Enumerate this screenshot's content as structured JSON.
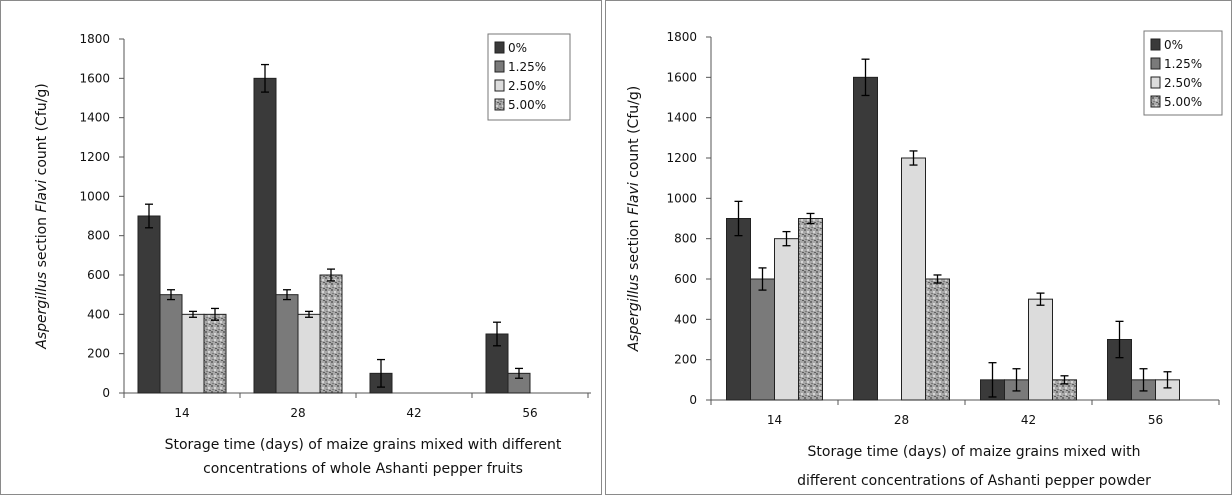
{
  "colors": {
    "s0": "#3a3a3a",
    "s1": "#7a7a7a",
    "s2": "#dcdcdc",
    "s3": "#9a9a9a",
    "axis": "#555555"
  },
  "chart_data": [
    {
      "type": "bar",
      "categories": [
        "14",
        "28",
        "42",
        "56"
      ],
      "ylim": [
        0,
        1800
      ],
      "yticks": [
        0,
        200,
        400,
        600,
        800,
        1000,
        1200,
        1400,
        1600,
        1800
      ],
      "ylabel_italic": "Aspergillus",
      "ylabel_mid": " section ",
      "ylabel_italic2": "Flavi",
      "ylabel_rest": " count (Cfu/g)",
      "xlabel_line1": "Storage time (days) of maize grains mixed with different",
      "xlabel_line2": "concentrations of whole Ashanti pepper fruits",
      "legend": [
        "0%",
        "1.25%",
        "2.50%",
        "5.00%"
      ],
      "legend_position": "top-right",
      "series": [
        {
          "name": "0%",
          "values": [
            900,
            1600,
            100,
            300
          ],
          "errors": [
            60,
            70,
            70,
            60
          ]
        },
        {
          "name": "1.25%",
          "values": [
            500,
            500,
            0,
            100
          ],
          "errors": [
            25,
            25,
            0,
            25
          ]
        },
        {
          "name": "2.50%",
          "values": [
            400,
            400,
            0,
            0
          ],
          "errors": [
            15,
            15,
            0,
            0
          ]
        },
        {
          "name": "5.00%",
          "values": [
            400,
            600,
            0,
            0
          ],
          "errors": [
            30,
            30,
            0,
            0
          ]
        }
      ]
    },
    {
      "type": "bar",
      "categories": [
        "14",
        "28",
        "42",
        "56"
      ],
      "ylim": [
        0,
        1800
      ],
      "yticks": [
        0,
        200,
        400,
        600,
        800,
        1000,
        1200,
        1400,
        1600,
        1800
      ],
      "ylabel_italic": "Aspergillus",
      "ylabel_mid": " section ",
      "ylabel_italic2": "Flavi",
      "ylabel_rest": " count (Cfu/g)",
      "xlabel_line1": "Storage time (days) of maize grains mixed with",
      "xlabel_line2": "different concentrations of Ashanti pepper powder",
      "legend": [
        "0%",
        "1.25%",
        "2.50%",
        "5.00%"
      ],
      "legend_position": "top-right",
      "series": [
        {
          "name": "0%",
          "values": [
            900,
            1600,
            100,
            300
          ],
          "errors": [
            85,
            90,
            85,
            90
          ]
        },
        {
          "name": "1.25%",
          "values": [
            600,
            0,
            100,
            100
          ],
          "errors": [
            55,
            0,
            55,
            55
          ]
        },
        {
          "name": "2.50%",
          "values": [
            800,
            1200,
            500,
            100
          ],
          "errors": [
            35,
            35,
            30,
            40
          ]
        },
        {
          "name": "5.00%",
          "values": [
            900,
            600,
            100,
            0
          ],
          "errors": [
            25,
            20,
            20,
            0
          ]
        }
      ]
    }
  ]
}
